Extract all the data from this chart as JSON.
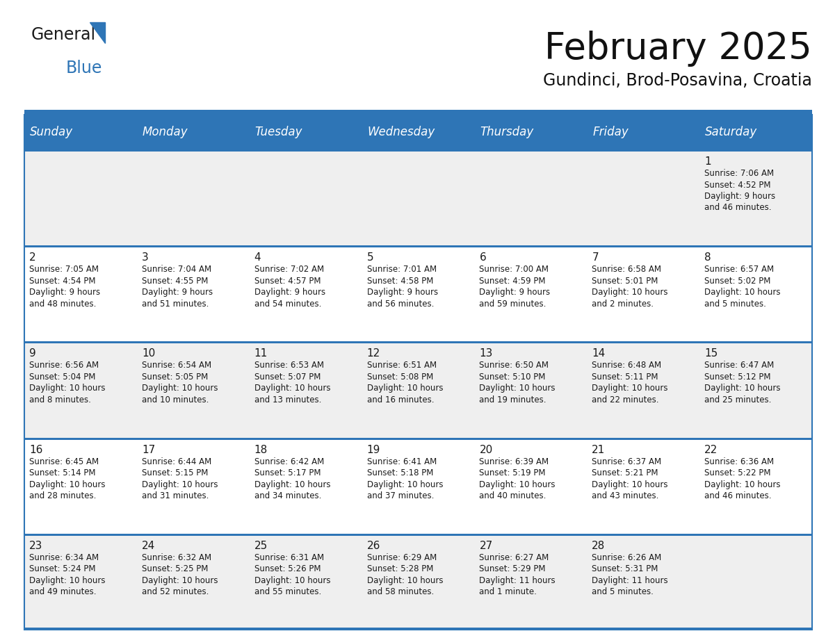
{
  "title": "February 2025",
  "subtitle": "Gundinci, Brod-Posavina, Croatia",
  "header_color": "#2E75B6",
  "header_text_color": "#FFFFFF",
  "row_colors": [
    "#EFEFEF",
    "#FFFFFF",
    "#EFEFEF",
    "#FFFFFF",
    "#EFEFEF"
  ],
  "sep_line_color": "#2E75B6",
  "cell_text_color": "#1a1a1a",
  "day_headers": [
    "Sunday",
    "Monday",
    "Tuesday",
    "Wednesday",
    "Thursday",
    "Friday",
    "Saturday"
  ],
  "weeks": [
    [
      {
        "day": "",
        "info": ""
      },
      {
        "day": "",
        "info": ""
      },
      {
        "day": "",
        "info": ""
      },
      {
        "day": "",
        "info": ""
      },
      {
        "day": "",
        "info": ""
      },
      {
        "day": "",
        "info": ""
      },
      {
        "day": "1",
        "info": "Sunrise: 7:06 AM\nSunset: 4:52 PM\nDaylight: 9 hours\nand 46 minutes."
      }
    ],
    [
      {
        "day": "2",
        "info": "Sunrise: 7:05 AM\nSunset: 4:54 PM\nDaylight: 9 hours\nand 48 minutes."
      },
      {
        "day": "3",
        "info": "Sunrise: 7:04 AM\nSunset: 4:55 PM\nDaylight: 9 hours\nand 51 minutes."
      },
      {
        "day": "4",
        "info": "Sunrise: 7:02 AM\nSunset: 4:57 PM\nDaylight: 9 hours\nand 54 minutes."
      },
      {
        "day": "5",
        "info": "Sunrise: 7:01 AM\nSunset: 4:58 PM\nDaylight: 9 hours\nand 56 minutes."
      },
      {
        "day": "6",
        "info": "Sunrise: 7:00 AM\nSunset: 4:59 PM\nDaylight: 9 hours\nand 59 minutes."
      },
      {
        "day": "7",
        "info": "Sunrise: 6:58 AM\nSunset: 5:01 PM\nDaylight: 10 hours\nand 2 minutes."
      },
      {
        "day": "8",
        "info": "Sunrise: 6:57 AM\nSunset: 5:02 PM\nDaylight: 10 hours\nand 5 minutes."
      }
    ],
    [
      {
        "day": "9",
        "info": "Sunrise: 6:56 AM\nSunset: 5:04 PM\nDaylight: 10 hours\nand 8 minutes."
      },
      {
        "day": "10",
        "info": "Sunrise: 6:54 AM\nSunset: 5:05 PM\nDaylight: 10 hours\nand 10 minutes."
      },
      {
        "day": "11",
        "info": "Sunrise: 6:53 AM\nSunset: 5:07 PM\nDaylight: 10 hours\nand 13 minutes."
      },
      {
        "day": "12",
        "info": "Sunrise: 6:51 AM\nSunset: 5:08 PM\nDaylight: 10 hours\nand 16 minutes."
      },
      {
        "day": "13",
        "info": "Sunrise: 6:50 AM\nSunset: 5:10 PM\nDaylight: 10 hours\nand 19 minutes."
      },
      {
        "day": "14",
        "info": "Sunrise: 6:48 AM\nSunset: 5:11 PM\nDaylight: 10 hours\nand 22 minutes."
      },
      {
        "day": "15",
        "info": "Sunrise: 6:47 AM\nSunset: 5:12 PM\nDaylight: 10 hours\nand 25 minutes."
      }
    ],
    [
      {
        "day": "16",
        "info": "Sunrise: 6:45 AM\nSunset: 5:14 PM\nDaylight: 10 hours\nand 28 minutes."
      },
      {
        "day": "17",
        "info": "Sunrise: 6:44 AM\nSunset: 5:15 PM\nDaylight: 10 hours\nand 31 minutes."
      },
      {
        "day": "18",
        "info": "Sunrise: 6:42 AM\nSunset: 5:17 PM\nDaylight: 10 hours\nand 34 minutes."
      },
      {
        "day": "19",
        "info": "Sunrise: 6:41 AM\nSunset: 5:18 PM\nDaylight: 10 hours\nand 37 minutes."
      },
      {
        "day": "20",
        "info": "Sunrise: 6:39 AM\nSunset: 5:19 PM\nDaylight: 10 hours\nand 40 minutes."
      },
      {
        "day": "21",
        "info": "Sunrise: 6:37 AM\nSunset: 5:21 PM\nDaylight: 10 hours\nand 43 minutes."
      },
      {
        "day": "22",
        "info": "Sunrise: 6:36 AM\nSunset: 5:22 PM\nDaylight: 10 hours\nand 46 minutes."
      }
    ],
    [
      {
        "day": "23",
        "info": "Sunrise: 6:34 AM\nSunset: 5:24 PM\nDaylight: 10 hours\nand 49 minutes."
      },
      {
        "day": "24",
        "info": "Sunrise: 6:32 AM\nSunset: 5:25 PM\nDaylight: 10 hours\nand 52 minutes."
      },
      {
        "day": "25",
        "info": "Sunrise: 6:31 AM\nSunset: 5:26 PM\nDaylight: 10 hours\nand 55 minutes."
      },
      {
        "day": "26",
        "info": "Sunrise: 6:29 AM\nSunset: 5:28 PM\nDaylight: 10 hours\nand 58 minutes."
      },
      {
        "day": "27",
        "info": "Sunrise: 6:27 AM\nSunset: 5:29 PM\nDaylight: 11 hours\nand 1 minute."
      },
      {
        "day": "28",
        "info": "Sunrise: 6:26 AM\nSunset: 5:31 PM\nDaylight: 11 hours\nand 5 minutes."
      },
      {
        "day": "",
        "info": ""
      }
    ]
  ],
  "logo_text_general": "General",
  "logo_text_blue": "Blue",
  "logo_color_general": "#1a1a1a",
  "logo_color_blue": "#2E75B6",
  "logo_triangle_color": "#2E75B6"
}
